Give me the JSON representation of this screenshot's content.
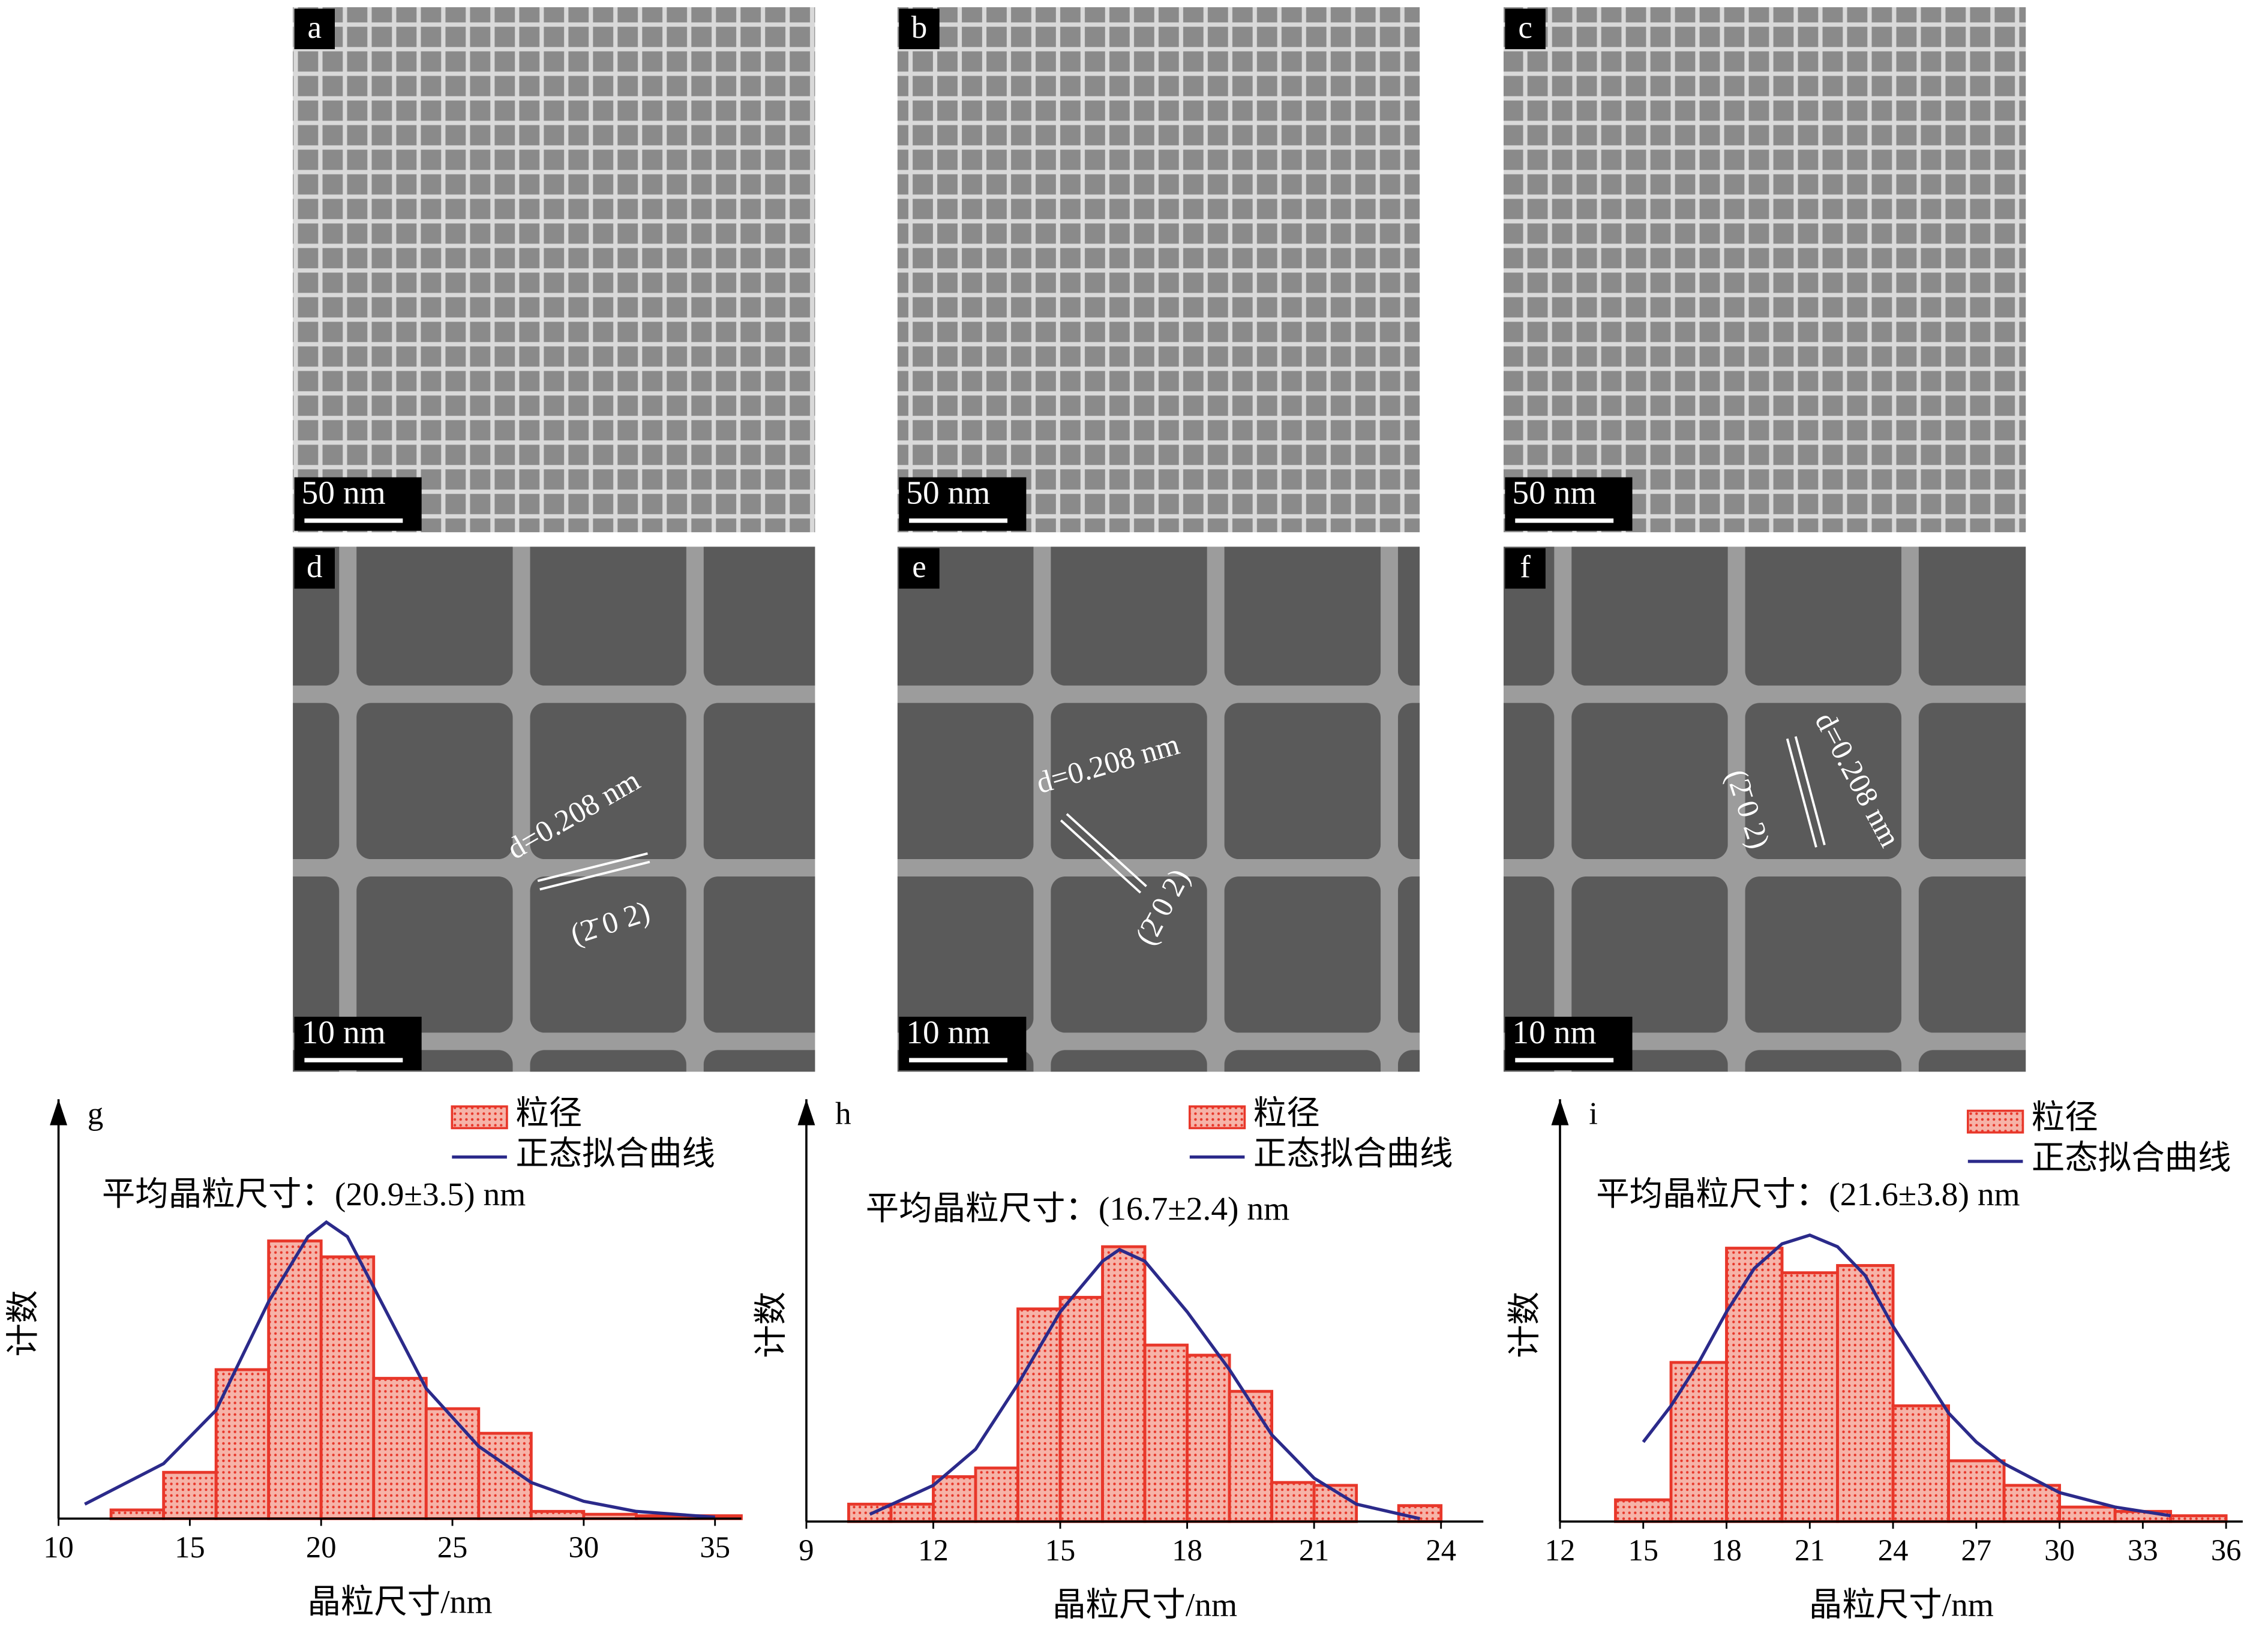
{
  "panels": [
    {
      "label": "a",
      "scale_bar": "50 nm"
    },
    {
      "label": "b",
      "scale_bar": "50 nm"
    },
    {
      "label": "c",
      "scale_bar": "50 nm"
    },
    {
      "label": "d",
      "scale_bar": "10 nm",
      "annotations": [
        "d=0.208 nm",
        "(2̄ 0 2)"
      ]
    },
    {
      "label": "e",
      "scale_bar": "10 nm",
      "annotations": [
        "d=0.208 nm",
        "(2̄ 0 2)"
      ]
    },
    {
      "label": "f",
      "scale_bar": "10 nm",
      "annotations": [
        "d=0.208 nm",
        "(2̄ 0 2)"
      ]
    }
  ],
  "chart_data": [
    {
      "type": "histogram",
      "label": "g",
      "annotation": "平均晶粒尺寸：(20.9±3.5) nm",
      "x_label": "晶粒尺寸/nm",
      "y_label": "计数",
      "bins": [
        12,
        14,
        16,
        18,
        20,
        22,
        24,
        26,
        28,
        30,
        32,
        34,
        36
      ],
      "counts": [
        6,
        32,
        103,
        192,
        181,
        97,
        76,
        59,
        5,
        3,
        2,
        2
      ],
      "name": "粒径",
      "color": "#e8372a",
      "fit": {
        "name": "正态拟合曲线",
        "color": "#2b2a8a",
        "x": [
          11,
          14,
          16,
          18,
          19.5,
          20.2,
          21,
          22,
          24,
          26,
          28,
          30,
          32,
          35
        ],
        "y": [
          10,
          38,
          75,
          150,
          195,
          205,
          195,
          160,
          90,
          50,
          25,
          12,
          5,
          1
        ]
      },
      "xlim": [
        10,
        36
      ],
      "ylim": [
        0,
        290
      ],
      "xticks": [
        10,
        15,
        20,
        25,
        30,
        35
      ]
    },
    {
      "type": "histogram",
      "label": "h",
      "annotation": "平均晶粒尺寸：(16.7±2.4) nm",
      "x_label": "晶粒尺寸/nm",
      "y_label": "计数",
      "bins": [
        10,
        11,
        12,
        13,
        14,
        15,
        16,
        17,
        18,
        19,
        20,
        21,
        22,
        23,
        24
      ],
      "counts": [
        12,
        12,
        31,
        37,
        147,
        155,
        190,
        122,
        115,
        90,
        27,
        25,
        0,
        11
      ],
      "name": "粒径",
      "color": "#e8372a",
      "fit": {
        "name": "正态拟合曲线",
        "color": "#2b2a8a",
        "x": [
          10.5,
          12,
          13,
          14,
          15,
          16,
          16.4,
          17,
          18,
          19,
          20,
          21,
          22,
          23.5
        ],
        "y": [
          5,
          25,
          50,
          95,
          145,
          180,
          188,
          180,
          145,
          105,
          60,
          30,
          12,
          2
        ]
      },
      "xlim": [
        9,
        25
      ],
      "ylim": [
        0,
        292
      ],
      "xticks": [
        9,
        12,
        15,
        18,
        21,
        24
      ]
    },
    {
      "type": "histogram",
      "label": "i",
      "annotation": "平均晶粒尺寸：(21.6±3.8) nm",
      "x_label": "晶粒尺寸/nm",
      "y_label": "计数",
      "bins": [
        14,
        16,
        18,
        20,
        22,
        24,
        26,
        28,
        30,
        32,
        34,
        36
      ],
      "counts": [
        15,
        110,
        189,
        172,
        177,
        80,
        42,
        25,
        10,
        7,
        4
      ],
      "name": "粒径",
      "color": "#e8372a",
      "fit": {
        "name": "正态拟合曲线",
        "color": "#2b2a8a",
        "x": [
          15,
          16,
          17,
          18,
          19,
          20,
          21,
          22,
          23,
          24,
          25,
          26,
          27,
          28,
          30,
          32,
          34
        ],
        "y": [
          55,
          80,
          110,
          145,
          175,
          192,
          198,
          190,
          170,
          135,
          105,
          75,
          55,
          40,
          20,
          10,
          4
        ]
      },
      "xlim": [
        12,
        36.6
      ],
      "ylim": [
        0,
        292
      ],
      "xticks": [
        12,
        15,
        18,
        21,
        24,
        27,
        30,
        33,
        36
      ]
    }
  ]
}
